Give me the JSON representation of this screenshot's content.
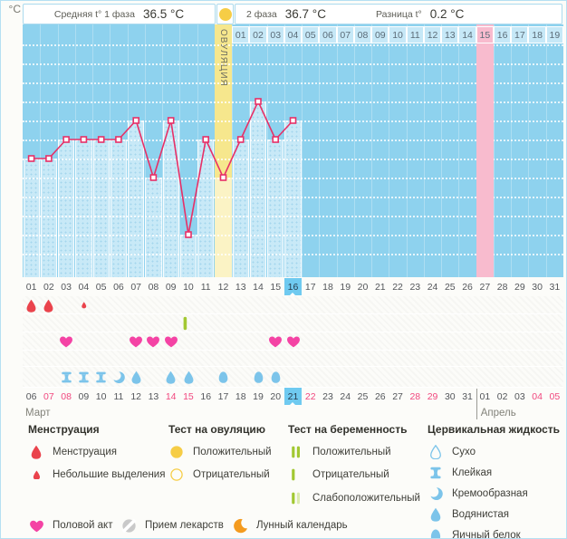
{
  "header": {
    "unit": "°C",
    "phase1_label": "Средняя t° 1 фаза",
    "phase1_value": "36.5 °C",
    "phase2_label": "2 фаза",
    "phase2_value": "36.7 °C",
    "diff_label": "Разница t°",
    "diff_value": "0.2 °C",
    "ovulation_label": "ОВУЛЯЦИЯ"
  },
  "chart_data": {
    "type": "line",
    "ylabel": "°C",
    "ylim": [
      35.9,
      37.2
    ],
    "grid": "dotted-white-horizontal",
    "y_ticks": [
      "37.2",
      "37.1",
      "37",
      "36.9",
      "36.8",
      "36.7",
      "36.6",
      "36.5",
      "36.4",
      "36.3",
      "36.2",
      "36.1",
      "36",
      "35.9"
    ],
    "cycle_days": [
      "01",
      "02",
      "03",
      "04",
      "05",
      "06",
      "07",
      "08",
      "09",
      "10",
      "11",
      "12",
      "13",
      "14",
      "15",
      "16",
      "17",
      "18",
      "19",
      "20",
      "21",
      "22",
      "23",
      "24",
      "25",
      "26",
      "27",
      "28",
      "29",
      "30",
      "31"
    ],
    "series": [
      {
        "name": "Базальная температура",
        "days": [
          1,
          2,
          3,
          4,
          5,
          6,
          7,
          8,
          9,
          10,
          11,
          12,
          13,
          14,
          15,
          16
        ],
        "values": [
          36.5,
          36.5,
          36.6,
          36.6,
          36.6,
          36.6,
          36.7,
          36.4,
          36.7,
          36.1,
          36.6,
          36.4,
          36.6,
          36.8,
          36.6,
          36.7
        ]
      }
    ],
    "ovulation_day": 12,
    "post_ovulation_labels": [
      "01",
      "02",
      "03",
      "04",
      "05",
      "06",
      "07",
      "08",
      "09",
      "10",
      "11",
      "12",
      "13",
      "14",
      "15",
      "16",
      "17",
      "18",
      "19"
    ],
    "highlighted_post_ovulation_day": "15",
    "today_cycle_day": "16"
  },
  "rows": {
    "menstruation": {
      "1": "normal",
      "2": "normal",
      "4": "light"
    },
    "pregnancy_test": {
      "10": "negative"
    },
    "intercourse": [
      3,
      7,
      8,
      9,
      15,
      16
    ],
    "medication": [],
    "cervical_fluid": {
      "3": "sticky",
      "4": "sticky",
      "5": "sticky",
      "6": "creamy",
      "7": "watery",
      "9": "watery",
      "10": "watery",
      "12": "eggwhite",
      "14": "eggwhite",
      "15": "eggwhite"
    }
  },
  "calendar": {
    "dates": [
      "06",
      "07",
      "08",
      "09",
      "10",
      "11",
      "12",
      "13",
      "14",
      "15",
      "16",
      "17",
      "18",
      "19",
      "20",
      "21",
      "22",
      "23",
      "24",
      "25",
      "26",
      "27",
      "28",
      "29",
      "30",
      "31",
      "01",
      "02",
      "03",
      "04",
      "05"
    ],
    "red_indices": [
      1,
      2,
      8,
      9,
      16,
      22,
      23,
      29,
      30
    ],
    "today_index": 15,
    "month_break_index": 26,
    "month1": "Март",
    "month2": "Апрель"
  },
  "legend": {
    "groups": [
      {
        "title": "Менструация",
        "items": [
          {
            "icon": "mens-drop",
            "label": "Менструация"
          },
          {
            "icon": "mens-drop-small",
            "label": "Небольшие выделения"
          }
        ]
      },
      {
        "title": "Тест на овуляцию",
        "items": [
          {
            "icon": "ovu-pos",
            "label": "Положительный"
          },
          {
            "icon": "ovu-neg",
            "label": "Отрицательный"
          }
        ]
      },
      {
        "title": "Тест на беременность",
        "items": [
          {
            "icon": "preg-pos",
            "label": "Положительный"
          },
          {
            "icon": "preg-neg",
            "label": "Отрицательный"
          },
          {
            "icon": "preg-weak",
            "label": "Слабоположительный"
          }
        ]
      },
      {
        "title": "Цервикальная жидкость",
        "items": [
          {
            "icon": "cf-dry",
            "label": "Сухо"
          },
          {
            "icon": "cf-sticky",
            "label": "Клейкая"
          },
          {
            "icon": "cf-creamy",
            "label": "Кремообразная"
          },
          {
            "icon": "cf-watery",
            "label": "Водянистая"
          },
          {
            "icon": "cf-egg",
            "label": "Яичный белок"
          }
        ]
      }
    ],
    "extra": [
      {
        "icon": "sex-heart",
        "label": "Половой акт"
      },
      {
        "icon": "pill",
        "label": "Прием лекарств"
      },
      {
        "icon": "moon",
        "label": "Лунный календарь"
      }
    ]
  },
  "colors": {
    "plot_background": "#8ed2ee",
    "under_curve_fill": "#c8e9f7",
    "temperature_line": "#e73067",
    "ovulation_column": "#f6e78d",
    "ovulation_column_light": "#fbf3c5",
    "expected_period_column": "#f8bbce",
    "today_highlight": "#6fcaf0",
    "menstruation_red": "#ea434c",
    "intercourse_pink": "#f443a4",
    "pregnancy_test_green": "#a2c832",
    "pregnancy_test_green_pale": "#dcebae",
    "cervical_blue": "#7cc4ea",
    "ovulation_test_yellow": "#f6cd46",
    "weekend_red": "#f1477e",
    "pill_gray": "#c9c9c9",
    "moon_orange": "#f49b1f",
    "post_ov_cell_blue": "#c6e8f7"
  }
}
